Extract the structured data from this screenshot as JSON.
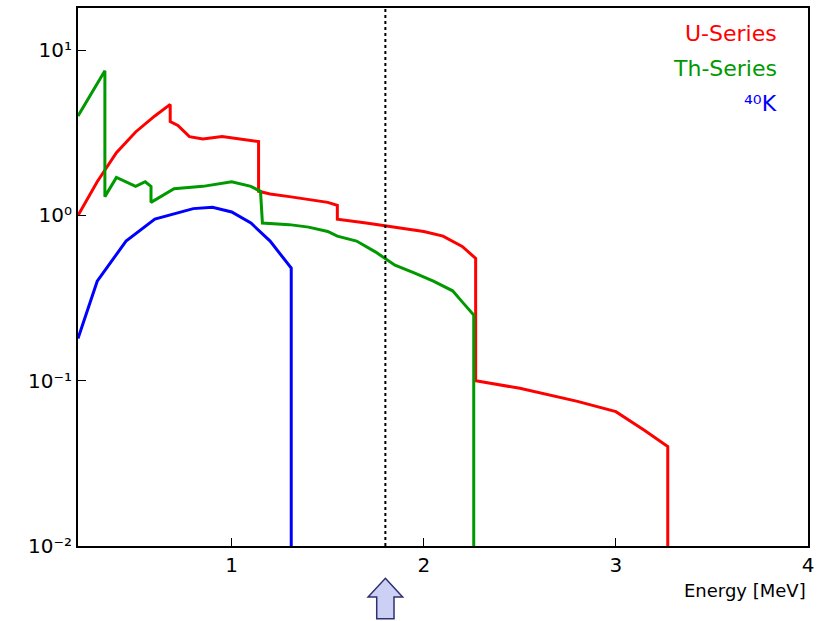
{
  "chart_data": {
    "type": "line",
    "x_label": "Energy [MeV]",
    "log": "y",
    "grid": false,
    "legend": "top right",
    "xlim": [
      0.2,
      4
    ],
    "xticks": [
      1,
      2,
      3,
      4
    ],
    "ylim": [
      0.01,
      18
    ],
    "yticks": [
      {
        "value": 0.01,
        "label": "10⁻²"
      },
      {
        "value": 0.1,
        "label": "10⁻¹"
      },
      {
        "value": 1,
        "label": "10⁰"
      },
      {
        "value": 10,
        "label": "10¹"
      }
    ],
    "vline": 1.8,
    "series": [
      {
        "name": "U-Series",
        "color": "#ff0000",
        "x": [
          0.2,
          0.3,
          0.4,
          0.5,
          0.6,
          0.68,
          0.68,
          0.72,
          0.78,
          0.85,
          0.95,
          1.05,
          1.14,
          1.14,
          1.2,
          1.3,
          1.4,
          1.5,
          1.55,
          1.55,
          1.7,
          1.85,
          2.0,
          2.1,
          2.2,
          2.27,
          2.27,
          2.5,
          2.8,
          3.0,
          3.15,
          3.27,
          3.27
        ],
        "values": [
          1.0,
          1.6,
          2.4,
          3.2,
          4.0,
          4.7,
          3.7,
          3.5,
          3.0,
          2.9,
          3.0,
          2.9,
          2.8,
          1.4,
          1.35,
          1.3,
          1.25,
          1.2,
          1.15,
          0.95,
          0.9,
          0.85,
          0.8,
          0.75,
          0.65,
          0.55,
          0.1,
          0.09,
          0.075,
          0.065,
          0.05,
          0.04,
          0.01
        ]
      },
      {
        "name": "Th-Series",
        "color": "#009900",
        "x": [
          0.2,
          0.34,
          0.34,
          0.4,
          0.5,
          0.55,
          0.58,
          0.58,
          0.7,
          0.85,
          1.0,
          1.1,
          1.15,
          1.16,
          1.3,
          1.4,
          1.5,
          1.55,
          1.65,
          1.75,
          1.85,
          1.95,
          2.05,
          2.15,
          2.2,
          2.26,
          2.26
        ],
        "values": [
          4.0,
          7.5,
          1.3,
          1.7,
          1.5,
          1.6,
          1.5,
          1.2,
          1.45,
          1.5,
          1.6,
          1.5,
          1.4,
          0.9,
          0.88,
          0.85,
          0.8,
          0.75,
          0.7,
          0.6,
          0.5,
          0.45,
          0.4,
          0.35,
          0.3,
          0.25,
          0.01
        ]
      },
      {
        "name": "⁴⁰K",
        "color": "#0000ff",
        "x": [
          0.2,
          0.3,
          0.45,
          0.6,
          0.8,
          0.9,
          1.0,
          1.1,
          1.2,
          1.3,
          1.31,
          1.31
        ],
        "values": [
          0.18,
          0.4,
          0.7,
          0.95,
          1.1,
          1.12,
          1.05,
          0.9,
          0.7,
          0.5,
          0.48,
          0.01
        ]
      }
    ]
  }
}
